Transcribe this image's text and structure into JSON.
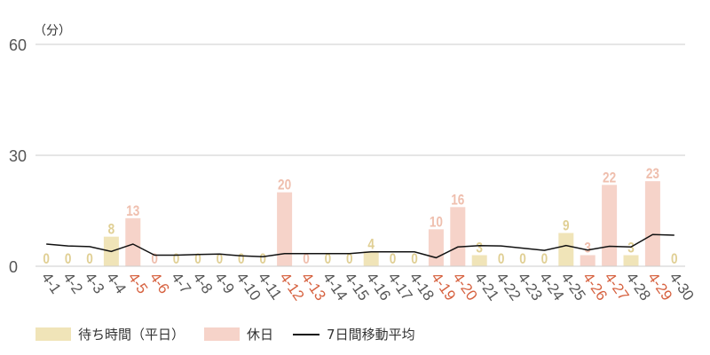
{
  "chart_data": {
    "type": "bar",
    "unit_label": "（分）",
    "y_ticks": [
      "0",
      "30",
      "60"
    ],
    "ylim": [
      0,
      60
    ],
    "grid": true,
    "legend_position": "bottom-left",
    "categories": [
      "4-1",
      "4-2",
      "4-3",
      "4-4",
      "4-5",
      "4-6",
      "4-7",
      "4-8",
      "4-9",
      "4-10",
      "4-11",
      "4-12",
      "4-13",
      "4-14",
      "4-15",
      "4-16",
      "4-17",
      "4-18",
      "4-19",
      "4-20",
      "4-21",
      "4-22",
      "4-23",
      "4-24",
      "4-25",
      "4-26",
      "4-27",
      "4-28",
      "4-29",
      "4-30"
    ],
    "holiday_flags": [
      false,
      false,
      false,
      false,
      true,
      true,
      false,
      false,
      false,
      false,
      false,
      true,
      true,
      false,
      false,
      false,
      false,
      false,
      true,
      true,
      false,
      false,
      false,
      false,
      false,
      true,
      true,
      false,
      true,
      false
    ],
    "values": [
      0,
      0,
      0,
      8,
      13,
      0,
      0,
      0,
      0,
      0,
      0,
      20,
      0,
      0,
      0,
      4,
      0,
      0,
      10,
      16,
      3,
      0,
      0,
      0,
      9,
      3,
      22,
      3,
      23,
      0
    ],
    "moving_average": [
      6.0,
      5.5,
      5.3,
      4.0,
      6.0,
      3.0,
      3.0,
      3.2,
      3.3,
      2.8,
      2.6,
      3.4,
      3.4,
      3.4,
      3.4,
      3.9,
      3.9,
      3.9,
      2.3,
      5.2,
      5.6,
      5.5,
      4.9,
      4.3,
      5.6,
      4.4,
      5.4,
      5.2,
      8.6,
      8.4
    ],
    "series": [
      {
        "name": "待ち時間（平日）",
        "color": "#f0e4b8",
        "label_color": "#e0cf94"
      },
      {
        "name": "休日",
        "color": "#f6d3c9",
        "label_color": "#efbfae"
      },
      {
        "name": "7日間移動平均",
        "color": "#111111"
      }
    ],
    "colors": {
      "grid": "#cccccc",
      "axis_text": "#555555",
      "holiday_tick": "#d6613f"
    }
  }
}
